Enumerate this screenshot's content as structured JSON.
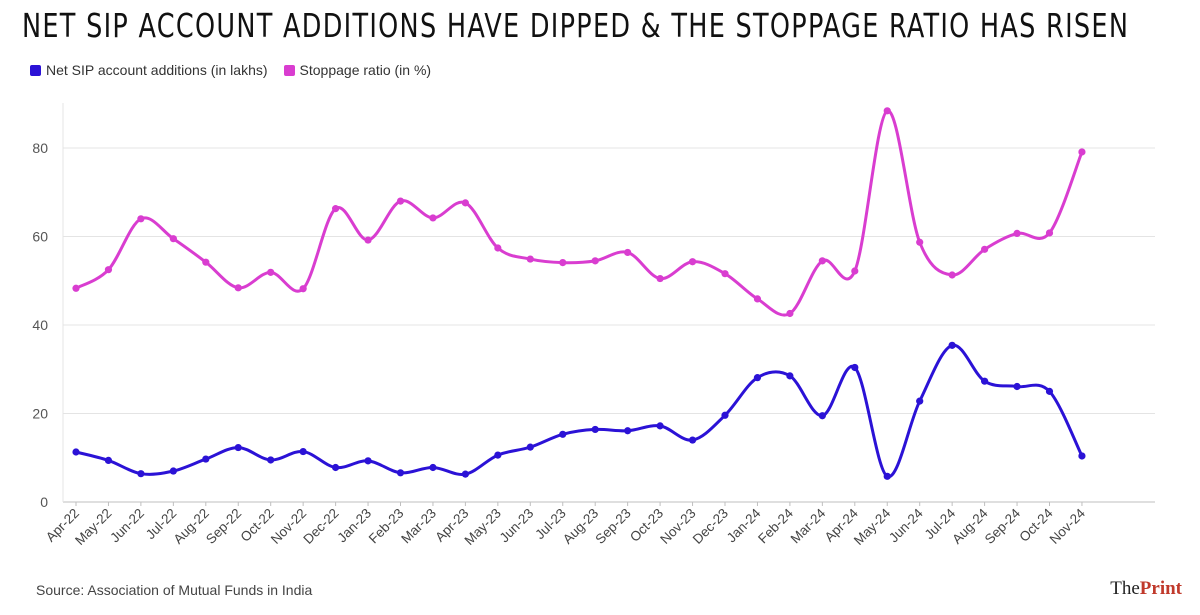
{
  "title": "NET SIP ACCOUNT ADDITIONS HAVE DIPPED & THE STOPPAGE RATIO HAS RISEN",
  "source": "Source: Association of Mutual Funds in India",
  "logo": {
    "prefix": "The",
    "main": "Print"
  },
  "chart_data": {
    "type": "line",
    "title": "NET SIP ACCOUNT ADDITIONS HAVE DIPPED & THE STOPPAGE RATIO HAS RISEN",
    "xlabel": "",
    "ylabel": "",
    "ylim": [
      0,
      90
    ],
    "yticks": [
      0,
      20,
      40,
      60,
      80
    ],
    "grid": true,
    "legend_position": "top-left",
    "categories": [
      "Apr-22",
      "May-22",
      "Jun-22",
      "Jul-22",
      "Aug-22",
      "Sep-22",
      "Oct-22",
      "Nov-22",
      "Dec-22",
      "Jan-23",
      "Feb-23",
      "Mar-23",
      "Apr-23",
      "May-23",
      "Jun-23",
      "Jul-23",
      "Aug-23",
      "Sep-23",
      "Oct-23",
      "Nov-23",
      "Dec-23",
      "Jan-24",
      "Feb-24",
      "Mar-24",
      "Apr-24",
      "May-24",
      "Jun-24",
      "Jul-24",
      "Aug-24",
      "Sep-24",
      "Oct-24",
      "Nov-24"
    ],
    "series": [
      {
        "name": "Net SIP account additions (in lakhs)",
        "color": "#2b12d6",
        "values": [
          11.3,
          9.4,
          6.4,
          7.0,
          9.7,
          12.3,
          9.5,
          11.4,
          7.8,
          9.3,
          6.6,
          7.8,
          6.3,
          10.6,
          12.4,
          15.3,
          16.4,
          16.1,
          17.2,
          14.0,
          19.6,
          28.1,
          28.5,
          19.5,
          30.4,
          5.8,
          22.8,
          35.4,
          27.3,
          26.1,
          25.0,
          10.4
        ]
      },
      {
        "name": "Stoppage ratio (in %)",
        "color": "#d93dd0",
        "values": [
          48.3,
          52.5,
          64.0,
          59.5,
          54.2,
          48.4,
          51.9,
          48.2,
          66.3,
          59.2,
          68.0,
          64.2,
          67.6,
          57.4,
          54.9,
          54.1,
          54.5,
          56.4,
          50.5,
          54.3,
          51.6,
          45.9,
          42.6,
          54.5,
          52.2,
          88.4,
          58.7,
          51.3,
          57.1,
          60.7,
          60.8,
          79.1
        ]
      }
    ]
  }
}
